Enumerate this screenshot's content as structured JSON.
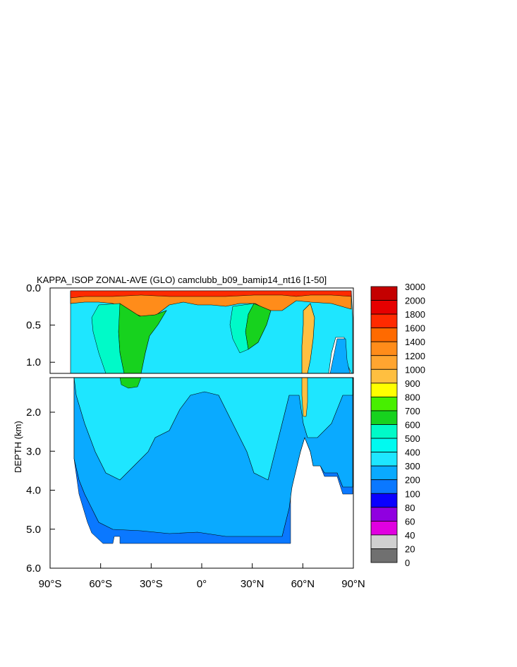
{
  "chart_data": {
    "type": "contour",
    "title": "KAPPA_ISOP ZONAL-AVE (GLO) camclubb_b09_bamip14_nt16 [1-50]",
    "ylabel": "DEPTH (km)",
    "xlim": [
      -90,
      90
    ],
    "ylim": [
      0,
      6
    ],
    "x_ticks": [
      {
        "value": -90,
        "label": "90°S"
      },
      {
        "value": -60,
        "label": "60°S"
      },
      {
        "value": -30,
        "label": "30°S"
      },
      {
        "value": 0,
        "label": "0°"
      },
      {
        "value": 30,
        "label": "30°N"
      },
      {
        "value": 60,
        "label": "60°N"
      },
      {
        "value": 90,
        "label": "90°N"
      }
    ],
    "y_ticks_upper": [
      {
        "value": 0.0,
        "label": "0.0"
      },
      {
        "value": 0.5,
        "label": "0.5"
      },
      {
        "value": 1.0,
        "label": "1.0"
      }
    ],
    "y_ticks_lower": [
      {
        "value": 2.0,
        "label": "2.0"
      },
      {
        "value": 3.0,
        "label": "3.0"
      },
      {
        "value": 4.0,
        "label": "4.0"
      },
      {
        "value": 5.0,
        "label": "5.0"
      },
      {
        "value": 6.0,
        "label": "6.0"
      }
    ],
    "colorbar": {
      "levels": [
        "3000",
        "2000",
        "1800",
        "1600",
        "1400",
        "1200",
        "1000",
        "900",
        "800",
        "700",
        "600",
        "500",
        "400",
        "300",
        "200",
        "100",
        "80",
        "60",
        "40",
        "20",
        "0"
      ],
      "colors": [
        "#c40000",
        "#e60000",
        "#ff2a00",
        "#ff6a00",
        "#ff8c1a",
        "#ffa530",
        "#ffbf40",
        "#ffff00",
        "#47ef00",
        "#17d21e",
        "#00fac8",
        "#00faf0",
        "#1ee6ff",
        "#0aaaff",
        "#0a78ff",
        "#0a00ff",
        "#9000e0",
        "#e000e0",
        "#d0d0d0",
        "#707070"
      ]
    }
  }
}
